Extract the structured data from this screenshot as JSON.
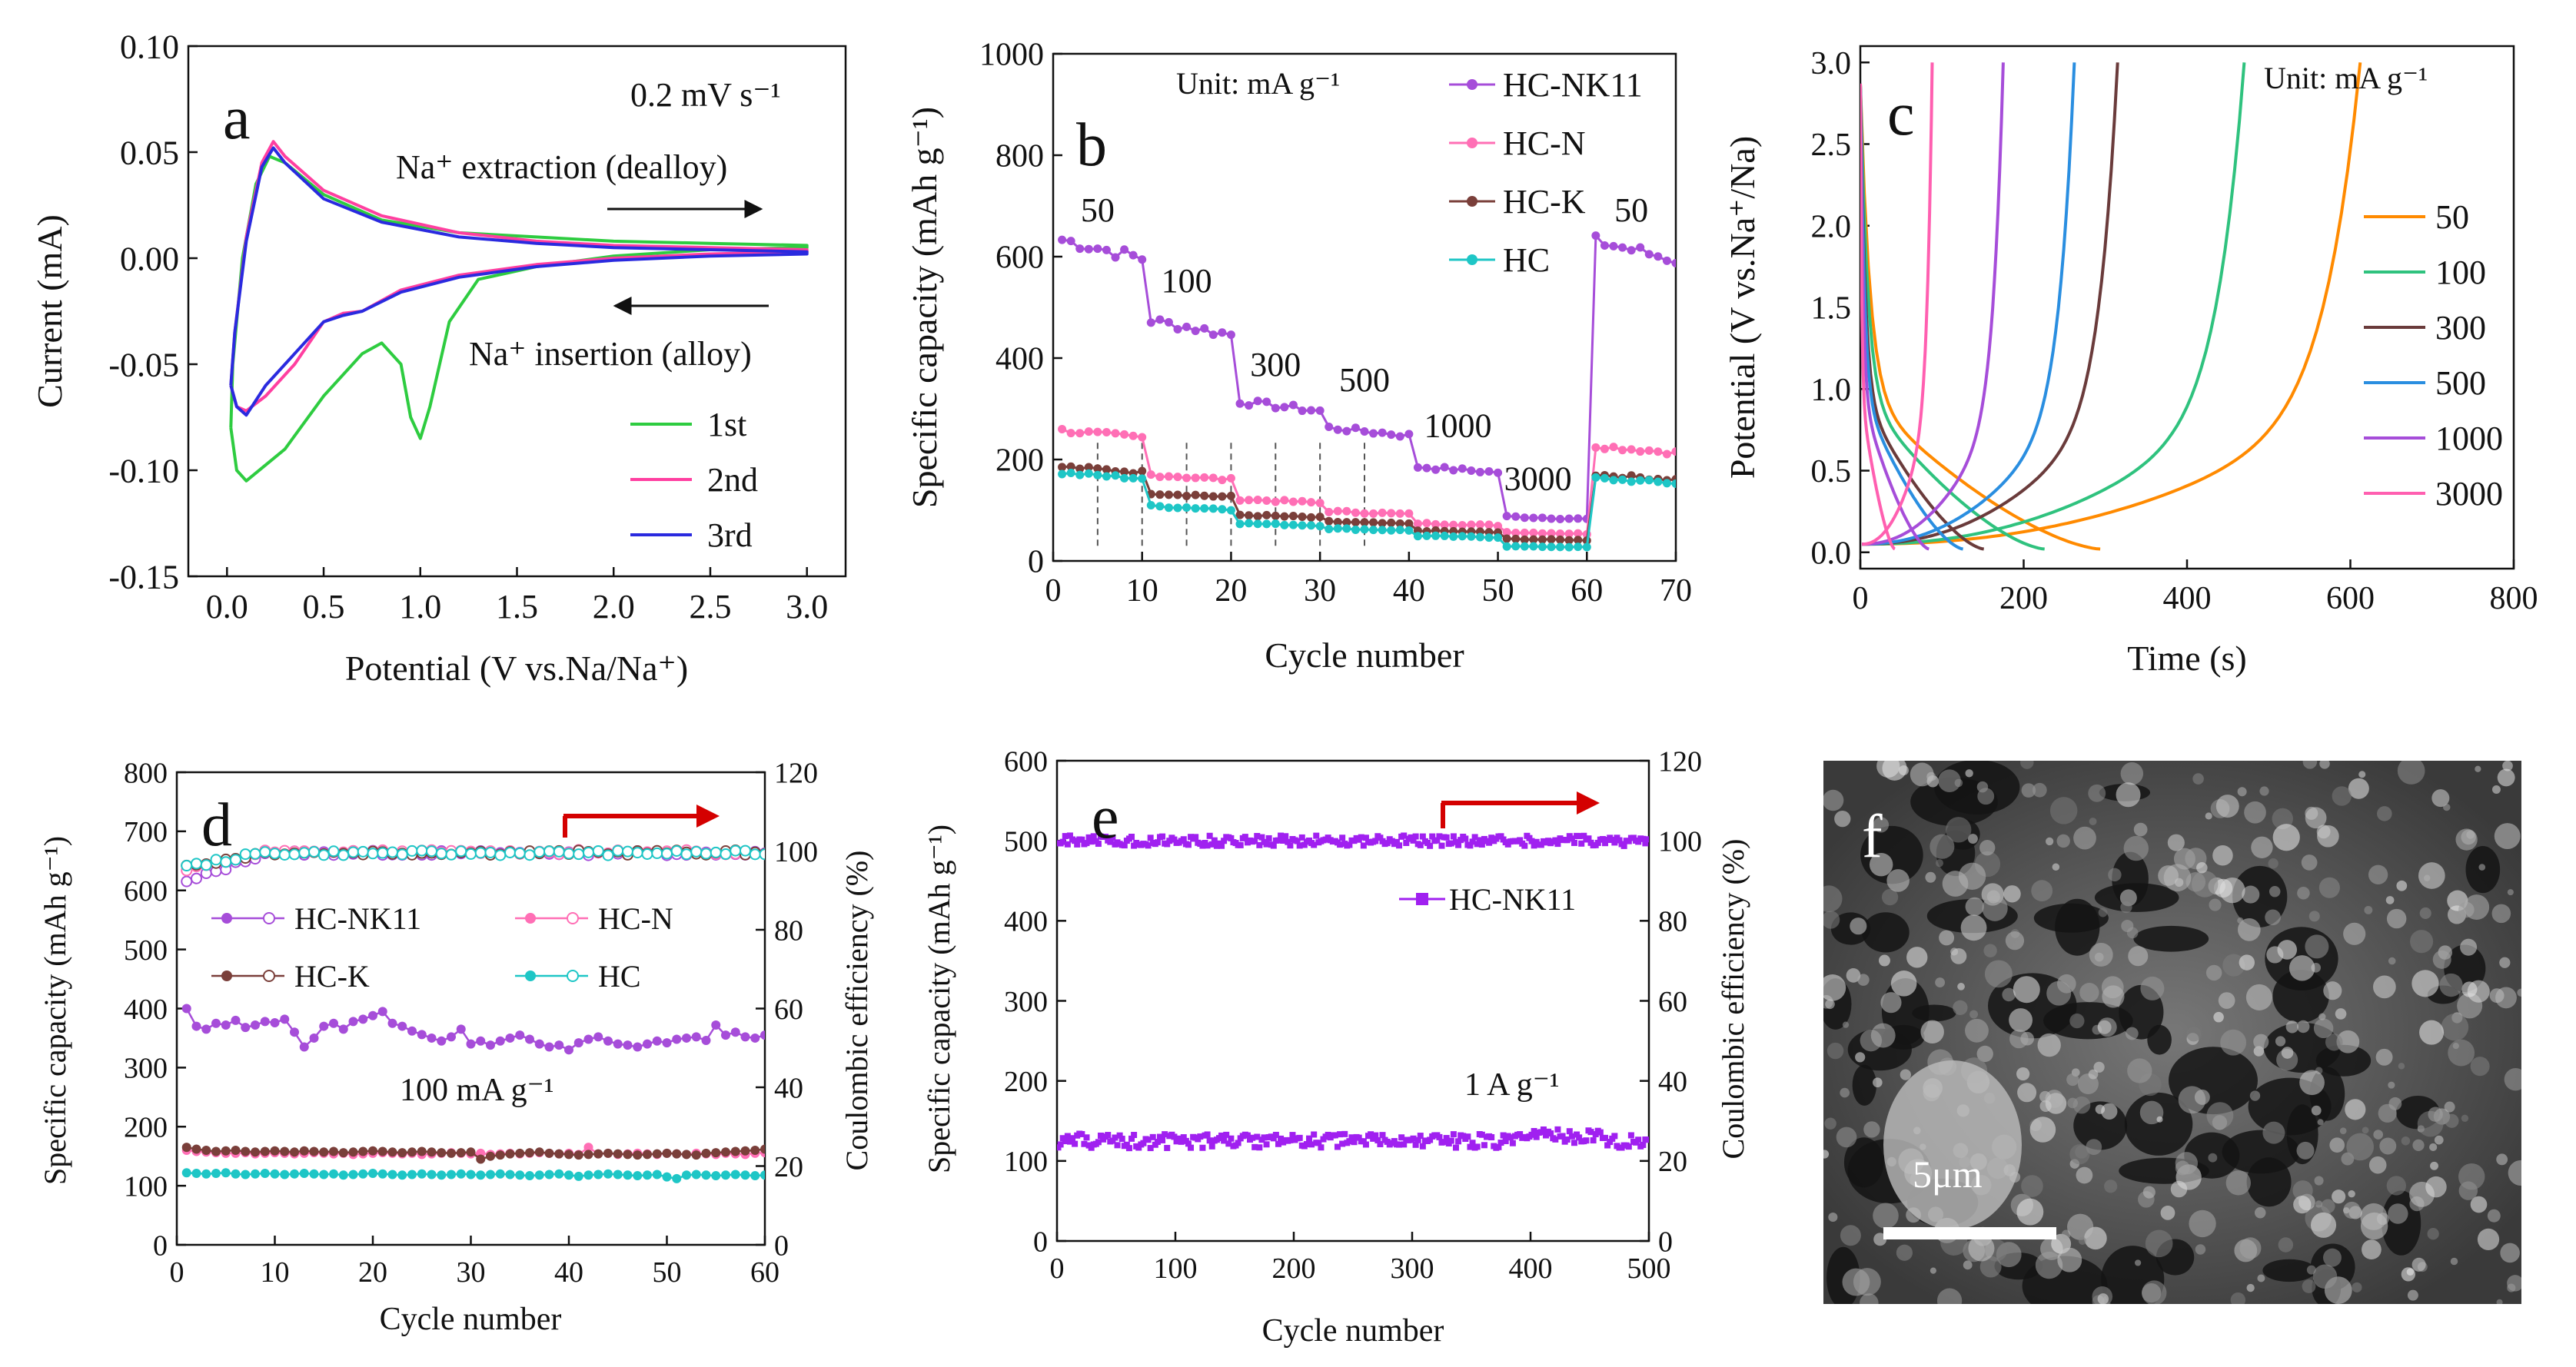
{
  "panels": {
    "a": {
      "letter": "a",
      "chart_data": {
        "type": "line",
        "xlabel": "Potential (V vs.Na/Na⁺)",
        "ylabel": "Current (mA)",
        "xlim": [
          -0.2,
          3.2
        ],
        "ylim": [
          -0.15,
          0.1
        ],
        "xticks": [
          "0.0",
          "0.5",
          "1.0",
          "1.5",
          "2.0",
          "2.5",
          "3.0"
        ],
        "xtick_values": [
          0,
          0.5,
          1,
          1.5,
          2,
          2.5,
          3
        ],
        "yticks": [
          "-0.15",
          "-0.10",
          "-0.05",
          "0.00",
          "0.05",
          "0.10"
        ],
        "ytick_values": [
          -0.15,
          -0.1,
          -0.05,
          0.0,
          0.05,
          0.1
        ],
        "annotations": [
          "0.2 mV s⁻¹",
          "Na⁺ extraction (dealloy)",
          "Na⁺ insertion (alloy)"
        ],
        "series": [
          {
            "name": "1st",
            "color": "#2ecc40",
            "x": [
              0.02,
              0.05,
              0.1,
              0.3,
              0.5,
              0.7,
              0.8,
              0.9,
              0.95,
              1.0,
              1.05,
              1.15,
              1.3,
              1.6,
              2.0,
              2.5,
              3.0,
              3.0,
              2.5,
              2.0,
              1.6,
              1.2,
              0.8,
              0.5,
              0.3,
              0.22,
              0.15,
              0.08,
              0.03,
              0.02
            ],
            "y": [
              -0.08,
              -0.1,
              -0.105,
              -0.09,
              -0.065,
              -0.045,
              -0.04,
              -0.05,
              -0.075,
              -0.085,
              -0.07,
              -0.03,
              -0.01,
              -0.004,
              0.001,
              0.004,
              0.005,
              0.006,
              0.007,
              0.008,
              0.01,
              0.012,
              0.018,
              0.03,
              0.045,
              0.048,
              0.035,
              0.0,
              -0.05,
              -0.08
            ]
          },
          {
            "name": "2nd",
            "color": "#ff3fa0",
            "x": [
              0.02,
              0.05,
              0.1,
              0.2,
              0.35,
              0.5,
              0.6,
              0.7,
              0.9,
              1.2,
              1.6,
              2.0,
              2.5,
              3.0,
              3.0,
              2.5,
              2.0,
              1.6,
              1.2,
              0.8,
              0.5,
              0.3,
              0.24,
              0.18,
              0.1,
              0.04,
              0.02
            ],
            "y": [
              -0.06,
              -0.07,
              -0.072,
              -0.065,
              -0.05,
              -0.03,
              -0.026,
              -0.025,
              -0.015,
              -0.008,
              -0.003,
              0.0,
              0.002,
              0.003,
              0.004,
              0.005,
              0.006,
              0.008,
              0.012,
              0.02,
              0.032,
              0.048,
              0.055,
              0.045,
              0.01,
              -0.035,
              -0.06
            ]
          },
          {
            "name": "3rd",
            "color": "#2a2adf",
            "x": [
              0.02,
              0.05,
              0.1,
              0.2,
              0.35,
              0.5,
              0.6,
              0.7,
              0.9,
              1.2,
              1.6,
              2.0,
              2.5,
              3.0,
              3.0,
              2.5,
              2.0,
              1.6,
              1.2,
              0.8,
              0.5,
              0.3,
              0.24,
              0.18,
              0.1,
              0.04,
              0.02
            ],
            "y": [
              -0.06,
              -0.07,
              -0.074,
              -0.06,
              -0.045,
              -0.03,
              -0.027,
              -0.025,
              -0.016,
              -0.009,
              -0.004,
              -0.001,
              0.001,
              0.002,
              0.003,
              0.004,
              0.005,
              0.007,
              0.01,
              0.017,
              0.028,
              0.045,
              0.052,
              0.043,
              0.008,
              -0.035,
              -0.06
            ]
          }
        ]
      }
    },
    "b": {
      "letter": "b",
      "chart_data": {
        "type": "line",
        "xlabel": "Cycle number",
        "ylabel": "Specific capacity (mAh g⁻¹)",
        "xlim": [
          0,
          70
        ],
        "ylim": [
          0,
          1000
        ],
        "xticks": [
          "0",
          "10",
          "20",
          "30",
          "40",
          "50",
          "60",
          "70"
        ],
        "xtick_values": [
          0,
          10,
          20,
          30,
          40,
          50,
          60,
          70
        ],
        "yticks": [
          "0",
          "200",
          "400",
          "600",
          "800",
          "1000"
        ],
        "ytick_values": [
          0,
          200,
          400,
          600,
          800,
          1000
        ],
        "unit_label": "Unit: mA g⁻¹",
        "rate_labels": [
          {
            "text": "50",
            "x": 5,
            "y": 670
          },
          {
            "text": "100",
            "x": 15,
            "y": 530
          },
          {
            "text": "300",
            "x": 25,
            "y": 365
          },
          {
            "text": "500",
            "x": 35,
            "y": 335
          },
          {
            "text": "1000",
            "x": 45.5,
            "y": 245
          },
          {
            "text": "3000",
            "x": 54.5,
            "y": 140
          },
          {
            "text": "50",
            "x": 65,
            "y": 670
          }
        ],
        "segments": [
          [
            1,
            10
          ],
          [
            11,
            20
          ],
          [
            21,
            30
          ],
          [
            31,
            40
          ],
          [
            41,
            50
          ],
          [
            51,
            60
          ],
          [
            61,
            70
          ]
        ],
        "series": [
          {
            "name": "HC-NK11",
            "color": "#a64dd9",
            "levels": [
              615,
              460,
              305,
              255,
              180,
              85,
              612
            ]
          },
          {
            "name": "HC-N",
            "color": "#ff6fb5",
            "levels": [
              250,
              165,
              118,
              95,
              72,
              55,
              220
            ]
          },
          {
            "name": "HC-K",
            "color": "#7a3f3a",
            "levels": [
              180,
              130,
              88,
              75,
              58,
              42,
              165
            ]
          },
          {
            "name": "HC",
            "color": "#1ec6c6",
            "levels": [
              168,
              105,
              72,
              62,
              48,
              28,
              158
            ]
          }
        ]
      }
    },
    "c": {
      "letter": "c",
      "chart_data": {
        "type": "line",
        "xlabel": "Time (s)",
        "ylabel": "Potential (V vs.Na⁺/Na)",
        "xlim": [
          0,
          800
        ],
        "ylim": [
          -0.1,
          3.1
        ],
        "xticks": [
          "0",
          "200",
          "400",
          "600",
          "800"
        ],
        "xtick_values": [
          0,
          200,
          400,
          600,
          800
        ],
        "yticks": [
          "0.0",
          "0.5",
          "1.0",
          "1.5",
          "2.0",
          "2.5",
          "3.0"
        ],
        "ytick_values": [
          0,
          0.5,
          1,
          1.5,
          2,
          2.5,
          3
        ],
        "unit_label": "Unit: mA g⁻¹",
        "series": [
          {
            "name": "50",
            "color": "#ff8a00",
            "t_end": 612
          },
          {
            "name": "100",
            "color": "#2fc27e",
            "t_end": 470
          },
          {
            "name": "300",
            "color": "#6a3b3b",
            "t_end": 315
          },
          {
            "name": "500",
            "color": "#2a8ee0",
            "t_end": 262
          },
          {
            "name": "1000",
            "color": "#a64dd9",
            "t_end": 175
          },
          {
            "name": "3000",
            "color": "#ff5fb0",
            "t_end": 88
          }
        ]
      }
    },
    "d": {
      "letter": "d",
      "chart_data": {
        "type": "scatter",
        "xlabel": "Cycle number",
        "ylabel": "Specific capacity (mAh g⁻¹)",
        "y2label": "Coulombic efficiency (%)",
        "xlim": [
          0,
          60
        ],
        "ylim": [
          0,
          800
        ],
        "y2lim": [
          0,
          120
        ],
        "xticks": [
          "0",
          "10",
          "20",
          "30",
          "40",
          "50",
          "60"
        ],
        "xtick_values": [
          0,
          10,
          20,
          30,
          40,
          50,
          60
        ],
        "yticks": [
          "0",
          "100",
          "200",
          "300",
          "400",
          "500",
          "600",
          "700",
          "800"
        ],
        "ytick_values": [
          0,
          100,
          200,
          300,
          400,
          500,
          600,
          700,
          800
        ],
        "y2ticks": [
          "0",
          "20",
          "40",
          "60",
          "80",
          "100",
          "120"
        ],
        "y2tick_values": [
          0,
          20,
          40,
          60,
          80,
          100,
          120
        ],
        "annotation": "100 mA g⁻¹",
        "series": [
          {
            "name": "HC-NK11",
            "color": "#a64dd9",
            "capacity": [
              400,
              370,
              365,
              375,
              372,
              380,
              368,
              372,
              378,
              376,
              382,
              360,
              335,
              350,
              370,
              375,
              365,
              378,
              382,
              388,
              395,
              375,
              370,
              362,
              356,
              350,
              345,
              352,
              365,
              340,
              345,
              338,
              345,
              350,
              355,
              348,
              340,
              335,
              338,
              330,
              342,
              348,
              352,
              345,
              340,
              338,
              335,
              340,
              345,
              342,
              348,
              350,
              352,
              346,
              372,
              355,
              360,
              352,
              350,
              355
            ],
            "ce_start": 92,
            "ce_end": 99.5
          },
          {
            "name": "HC-N",
            "color": "#ff6fb5",
            "capacity": [
              160,
              158,
              157,
              156,
              155,
              155,
              156,
              154,
              155,
              156,
              155,
              154,
              155,
              156,
              155,
              154,
              155,
              153,
              154,
              155,
              156,
              155,
              154,
              155,
              153,
              154,
              155,
              156,
              155,
              154,
              155,
              153,
              154,
              155,
              154,
              155,
              156,
              155,
              154,
              155,
              153,
              165,
              154,
              155,
              153,
              154,
              155,
              154,
              153,
              155,
              154,
              153,
              155,
              154,
              153,
              155,
              154,
              153,
              155,
              156
            ],
            "ce_start": 95,
            "ce_end": 99.7
          },
          {
            "name": "HC-K",
            "color": "#7a3f3a",
            "capacity": [
              165,
              162,
              160,
              158,
              159,
              160,
              158,
              157,
              158,
              159,
              158,
              157,
              159,
              158,
              157,
              158,
              156,
              157,
              158,
              159,
              158,
              157,
              156,
              157,
              158,
              157,
              156,
              155,
              156,
              157,
              145,
              150,
              152,
              154,
              155,
              156,
              157,
              155,
              154,
              153,
              152,
              153,
              154,
              155,
              154,
              153,
              152,
              153,
              154,
              155,
              154,
              153,
              152,
              155,
              156,
              157,
              158,
              159,
              160,
              162
            ],
            "ce_start": 96,
            "ce_end": 99.6
          },
          {
            "name": "HC",
            "color": "#1ec6c6",
            "capacity": [
              122,
              121,
              120,
              121,
              122,
              120,
              119,
              120,
              121,
              120,
              119,
              120,
              121,
              120,
              119,
              120,
              118,
              119,
              120,
              121,
              120,
              119,
              118,
              119,
              120,
              119,
              118,
              119,
              120,
              119,
              118,
              119,
              120,
              119,
              118,
              117,
              118,
              119,
              120,
              118,
              116,
              118,
              119,
              120,
              119,
              118,
              117,
              118,
              119,
              115,
              112,
              118,
              119,
              118,
              117,
              118,
              119,
              118,
              117,
              118
            ],
            "ce_start": 96,
            "ce_end": 99.5
          }
        ]
      }
    },
    "e": {
      "letter": "e",
      "chart_data": {
        "type": "scatter",
        "xlabel": "Cycle number",
        "ylabel": "Specific capacity (mAh g⁻¹)",
        "y2label": "Coulombic efficiency (%)",
        "xlim": [
          0,
          500
        ],
        "ylim": [
          0,
          600
        ],
        "y2lim": [
          0,
          120
        ],
        "xticks": [
          "0",
          "100",
          "200",
          "300",
          "400",
          "500"
        ],
        "xtick_values": [
          0,
          100,
          200,
          300,
          400,
          500
        ],
        "yticks": [
          "0",
          "100",
          "200",
          "300",
          "400",
          "500",
          "600"
        ],
        "ytick_values": [
          0,
          100,
          200,
          300,
          400,
          500,
          600
        ],
        "y2ticks": [
          "0",
          "20",
          "40",
          "60",
          "80",
          "100",
          "120"
        ],
        "y2tick_values": [
          0,
          20,
          40,
          60,
          80,
          100,
          120
        ],
        "annotation": "1 A g⁻¹",
        "series": [
          {
            "name": "HC-NK11",
            "color": "#a020f0",
            "capacity_mean": 125,
            "ce_mean": 100
          }
        ]
      }
    },
    "f": {
      "letter": "f",
      "scale_bar": "5μm"
    }
  }
}
